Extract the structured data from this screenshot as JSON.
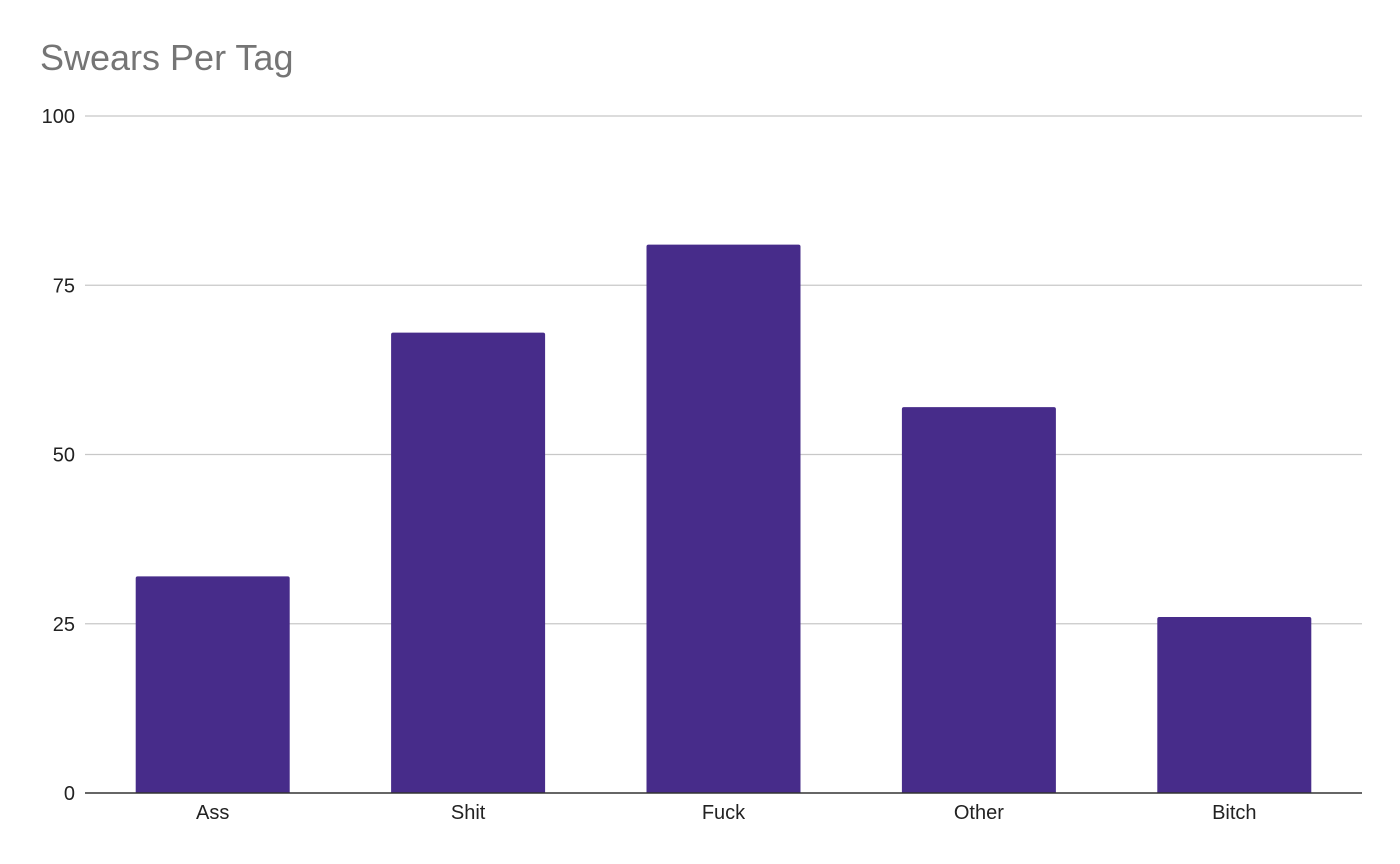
{
  "chart_data": {
    "type": "bar",
    "title": "Swears Per Tag",
    "xlabel": "",
    "ylabel": "",
    "categories": [
      "Ass",
      "Shit",
      "Fuck",
      "Other",
      "Bitch"
    ],
    "values": [
      32,
      68,
      81,
      57,
      26
    ],
    "ylim": [
      0,
      100
    ],
    "yticks": [
      0,
      25,
      50,
      75,
      100
    ],
    "ytick_labels": [
      "0",
      "25",
      "50",
      "75",
      "100"
    ],
    "grid": true,
    "legend": "none",
    "bar_color": "#472c8a",
    "grid_color": "#c8c8c8",
    "axis_color": "#333333",
    "title_color": "#757575",
    "label_color": "#222222"
  }
}
